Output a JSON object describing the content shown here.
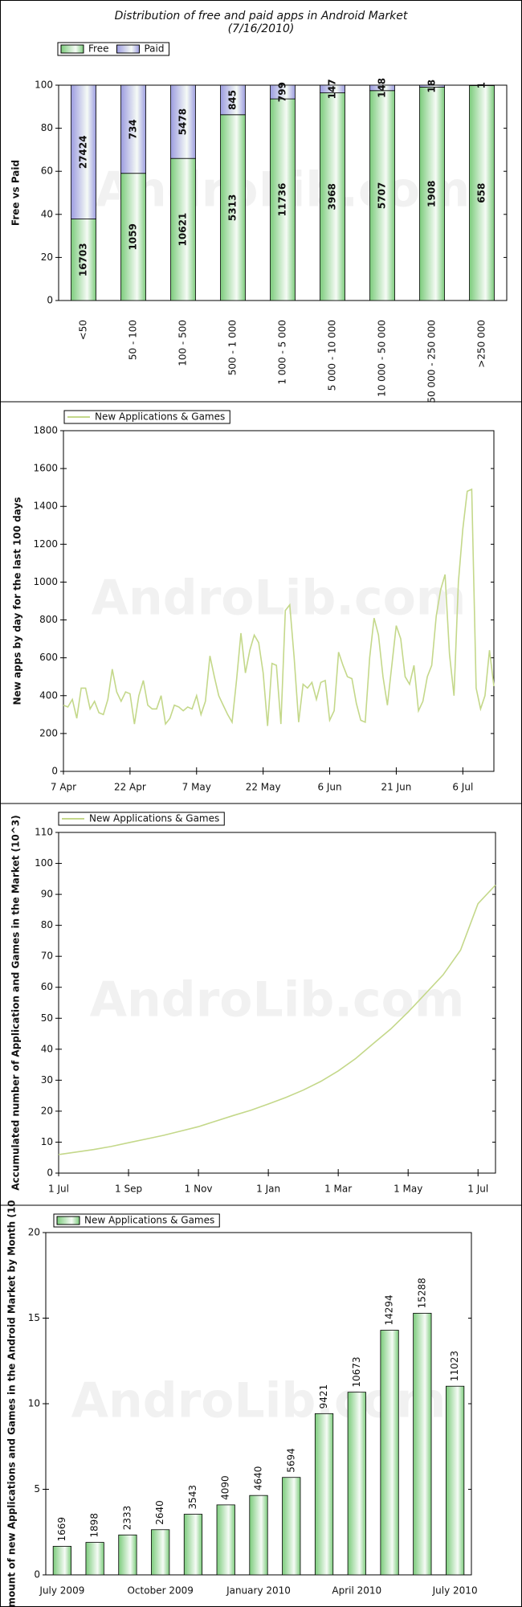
{
  "chart_data": [
    {
      "type": "bar",
      "stacked": "percent",
      "title": "Distribution of free and paid apps in Android Market",
      "subtitle": "(7/16/2010)",
      "watermark": "AndroLib.com",
      "ylabel": "Free vs Paid",
      "categories": [
        "<50",
        "50 - 100",
        "100 - 500",
        "500 - 1 000",
        "1 000 - 5 000",
        "5 000 - 10 000",
        "10 000 - 50 000",
        "50 000 - 250 000",
        ">250 000"
      ],
      "series": [
        {
          "name": "Free",
          "color": "#7ccc7c",
          "values": [
            16703,
            1059,
            10621,
            5313,
            11736,
            3968,
            5707,
            1908,
            658
          ]
        },
        {
          "name": "Paid",
          "color": "#9c9ce0",
          "values": [
            27424,
            734,
            5478,
            845,
            799,
            147,
            148,
            18,
            1
          ]
        }
      ],
      "ylim": [
        0,
        100
      ],
      "yticks": [
        0,
        20,
        40,
        60,
        80,
        100
      ]
    },
    {
      "type": "line",
      "watermark": "AndroLib.com",
      "ylabel": "New apps by day for the last 100 days",
      "categories": [
        "7 Apr",
        "8 Apr",
        "9 Apr",
        "10 Apr",
        "11 Apr",
        "12 Apr",
        "13 Apr",
        "14 Apr",
        "15 Apr",
        "16 Apr",
        "17 Apr",
        "18 Apr",
        "19 Apr",
        "20 Apr",
        "21 Apr",
        "22 Apr",
        "23 Apr",
        "24 Apr",
        "25 Apr",
        "26 Apr",
        "27 Apr",
        "28 Apr",
        "29 Apr",
        "30 Apr",
        "1 May",
        "2 May",
        "3 May",
        "4 May",
        "5 May",
        "6 May",
        "7 May",
        "8 May",
        "9 May",
        "10 May",
        "11 May",
        "12 May",
        "13 May",
        "14 May",
        "15 May",
        "16 May",
        "17 May",
        "18 May",
        "19 May",
        "20 May",
        "21 May",
        "22 May",
        "23 May",
        "24 May",
        "25 May",
        "26 May",
        "27 May",
        "28 May",
        "29 May",
        "30 May",
        "31 May",
        "1 Jun",
        "2 Jun",
        "3 Jun",
        "4 Jun",
        "5 Jun",
        "6 Jun",
        "7 Jun",
        "8 Jun",
        "9 Jun",
        "10 Jun",
        "11 Jun",
        "12 Jun",
        "13 Jun",
        "14 Jun",
        "15 Jun",
        "16 Jun",
        "17 Jun",
        "18 Jun",
        "19 Jun",
        "20 Jun",
        "21 Jun",
        "22 Jun",
        "23 Jun",
        "24 Jun",
        "25 Jun",
        "26 Jun",
        "27 Jun",
        "28 Jun",
        "29 Jun",
        "30 Jun",
        "1 Jul",
        "2 Jul",
        "3 Jul",
        "4 Jul",
        "5 Jul",
        "6 Jul",
        "7 Jul",
        "8 Jul",
        "9 Jul",
        "10 Jul",
        "11 Jul",
        "12 Jul",
        "13 Jul"
      ],
      "series": [
        {
          "name": "New Applications & Games",
          "color": "#c4d88a",
          "values": [
            350,
            340,
            380,
            280,
            440,
            440,
            330,
            370,
            310,
            300,
            380,
            540,
            420,
            370,
            420,
            410,
            250,
            400,
            480,
            350,
            330,
            330,
            400,
            250,
            280,
            350,
            340,
            320,
            340,
            330,
            400,
            300,
            370,
            610,
            500,
            400,
            350,
            300,
            260,
            480,
            730,
            520,
            640,
            720,
            680,
            520,
            240,
            570,
            560,
            250,
            850,
            880,
            600,
            260,
            460,
            440,
            470,
            380,
            470,
            480,
            270,
            320,
            630,
            560,
            500,
            490,
            360,
            270,
            260,
            600,
            810,
            720,
            500,
            350,
            560,
            770,
            700,
            500,
            460,
            560,
            320,
            370,
            500,
            560,
            820,
            960,
            1040,
            620,
            400,
            1000,
            1280,
            1480,
            1490,
            440,
            330,
            400,
            640,
            450
          ]
        }
      ],
      "xticks": [
        "7 Apr",
        "22 Apr",
        "7 May",
        "22 May",
        "6 Jun",
        "21 Jun",
        "6 Jul"
      ],
      "ylim": [
        0,
        1800
      ],
      "yticks": [
        0,
        200,
        400,
        600,
        800,
        1000,
        1200,
        1400,
        1600,
        1800
      ]
    },
    {
      "type": "line",
      "watermark": "AndroLib.com",
      "ylabel": "Accumulated number of Application and Games in the Market (10^3)",
      "categories": [
        "1 Jul",
        "15 Jul",
        "1 Aug",
        "15 Aug",
        "1 Sep",
        "15 Sep",
        "1 Oct",
        "15 Oct",
        "1 Nov",
        "15 Nov",
        "1 Dec",
        "15 Dec",
        "1 Jan",
        "15 Jan",
        "1 Feb",
        "15 Feb",
        "1 Mar",
        "15 Mar",
        "1 Apr",
        "15 Apr",
        "1 May",
        "15 May",
        "1 Jun",
        "15 Jun",
        "1 Jul",
        "12 Jul"
      ],
      "series": [
        {
          "name": "New Applications & Games",
          "color": "#c4d88a",
          "values": [
            6,
            6.8,
            7.6,
            8.6,
            9.8,
            11,
            12.2,
            13.6,
            15,
            16.8,
            18.6,
            20.3,
            22.3,
            24.4,
            26.8,
            29.6,
            33,
            37,
            41.8,
            46.5,
            52,
            58,
            64,
            72,
            87,
            93
          ]
        }
      ],
      "xticks": [
        "1 Jul",
        "1 Sep",
        "1 Nov",
        "1 Jan",
        "1 Mar",
        "1 May",
        "1 Jul"
      ],
      "ylim": [
        0,
        110
      ],
      "yticks": [
        0,
        10,
        20,
        30,
        40,
        50,
        60,
        70,
        80,
        90,
        100,
        110
      ]
    },
    {
      "type": "bar",
      "watermark": "AndroLib.com",
      "ylabel": "mount of new Applications and Games in the Android Market by Month (10",
      "categories": [
        "July 2009",
        null,
        null,
        "October 2009",
        null,
        null,
        "January 2010",
        null,
        null,
        "April 2010",
        null,
        null,
        "July 2010"
      ],
      "series": [
        {
          "name": "New Applications & Games",
          "color": "#7ccc7c",
          "values": [
            1.669,
            1.898,
            2.333,
            2.64,
            3.543,
            4.09,
            4.64,
            5.694,
            9.421,
            10.673,
            14.294,
            15.288,
            11.023
          ],
          "value_labels": [
            "1669",
            "1898",
            "2333",
            "2640",
            "3543",
            "4090",
            "4640",
            "5694",
            "9421",
            "10673",
            "14294",
            "15288",
            "11023"
          ]
        }
      ],
      "ylim": [
        0,
        20
      ],
      "yticks": [
        0,
        5,
        10,
        15,
        20
      ]
    }
  ]
}
